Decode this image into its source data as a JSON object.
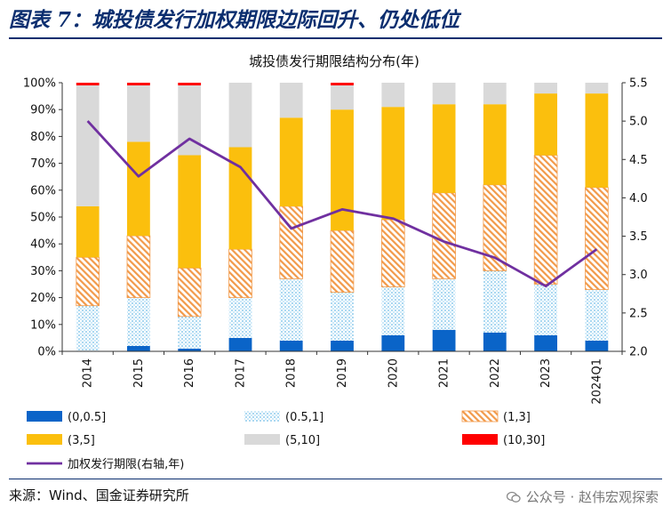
{
  "figure_title": "图表 7：城投债发行加权期限边际回升、仍处低位",
  "source": "来源：Wind、国金证券研究所",
  "watermark": "公众号 · 赵伟宏观探索",
  "chart_data": {
    "type": "bar",
    "stacked": true,
    "title": "城投债发行期限结构分布(年)",
    "categories": [
      "2014",
      "2015",
      "2016",
      "2017",
      "2018",
      "2019",
      "2020",
      "2021",
      "2022",
      "2023",
      "2024Q1"
    ],
    "ylim_left": [
      0,
      100
    ],
    "yticks_left": [
      "0%",
      "10%",
      "20%",
      "30%",
      "40%",
      "50%",
      "60%",
      "70%",
      "80%",
      "90%",
      "100%"
    ],
    "ylim_right": [
      2.0,
      5.5
    ],
    "yticks_right": [
      "2.0",
      "2.5",
      "3.0",
      "3.5",
      "4.0",
      "4.5",
      "5.0",
      "5.5"
    ],
    "grid": false,
    "legend_position": "bottom",
    "series": [
      {
        "name": "(0,0.5]",
        "color": "#0a64c8",
        "pattern": "solid",
        "values": [
          0,
          2,
          1,
          5,
          4,
          4,
          6,
          8,
          7,
          6,
          4
        ]
      },
      {
        "name": "(0.5,1]",
        "color": "#9fd3f2",
        "pattern": "dots",
        "values": [
          17,
          18,
          12,
          15,
          23,
          18,
          18,
          19,
          23,
          19,
          19
        ]
      },
      {
        "name": "(1,3]",
        "color": "#f29a4a",
        "pattern": "hatch",
        "values": [
          18,
          23,
          18,
          18,
          27,
          23,
          25,
          32,
          32,
          48,
          38
        ]
      },
      {
        "name": "(3,5]",
        "color": "#fbbf0d",
        "pattern": "solid",
        "values": [
          19,
          35,
          42,
          38,
          33,
          45,
          42,
          33,
          30,
          23,
          35
        ]
      },
      {
        "name": "(5,10]",
        "color": "#d9d9d9",
        "pattern": "solid",
        "values": [
          45,
          21,
          26,
          24,
          13,
          9,
          9,
          8,
          8,
          4,
          4
        ]
      },
      {
        "name": "(10,30]",
        "color": "#ff0000",
        "pattern": "solid",
        "values": [
          1,
          1,
          1,
          0,
          0,
          1,
          0,
          0,
          0,
          0,
          0
        ]
      }
    ],
    "line": {
      "name": "加权发行期限(右轴,年)",
      "color": "#7030a0",
      "axis": "right",
      "values": [
        5.0,
        4.28,
        4.77,
        4.4,
        3.6,
        3.85,
        3.73,
        3.43,
        3.22,
        2.85,
        3.33
      ]
    }
  }
}
